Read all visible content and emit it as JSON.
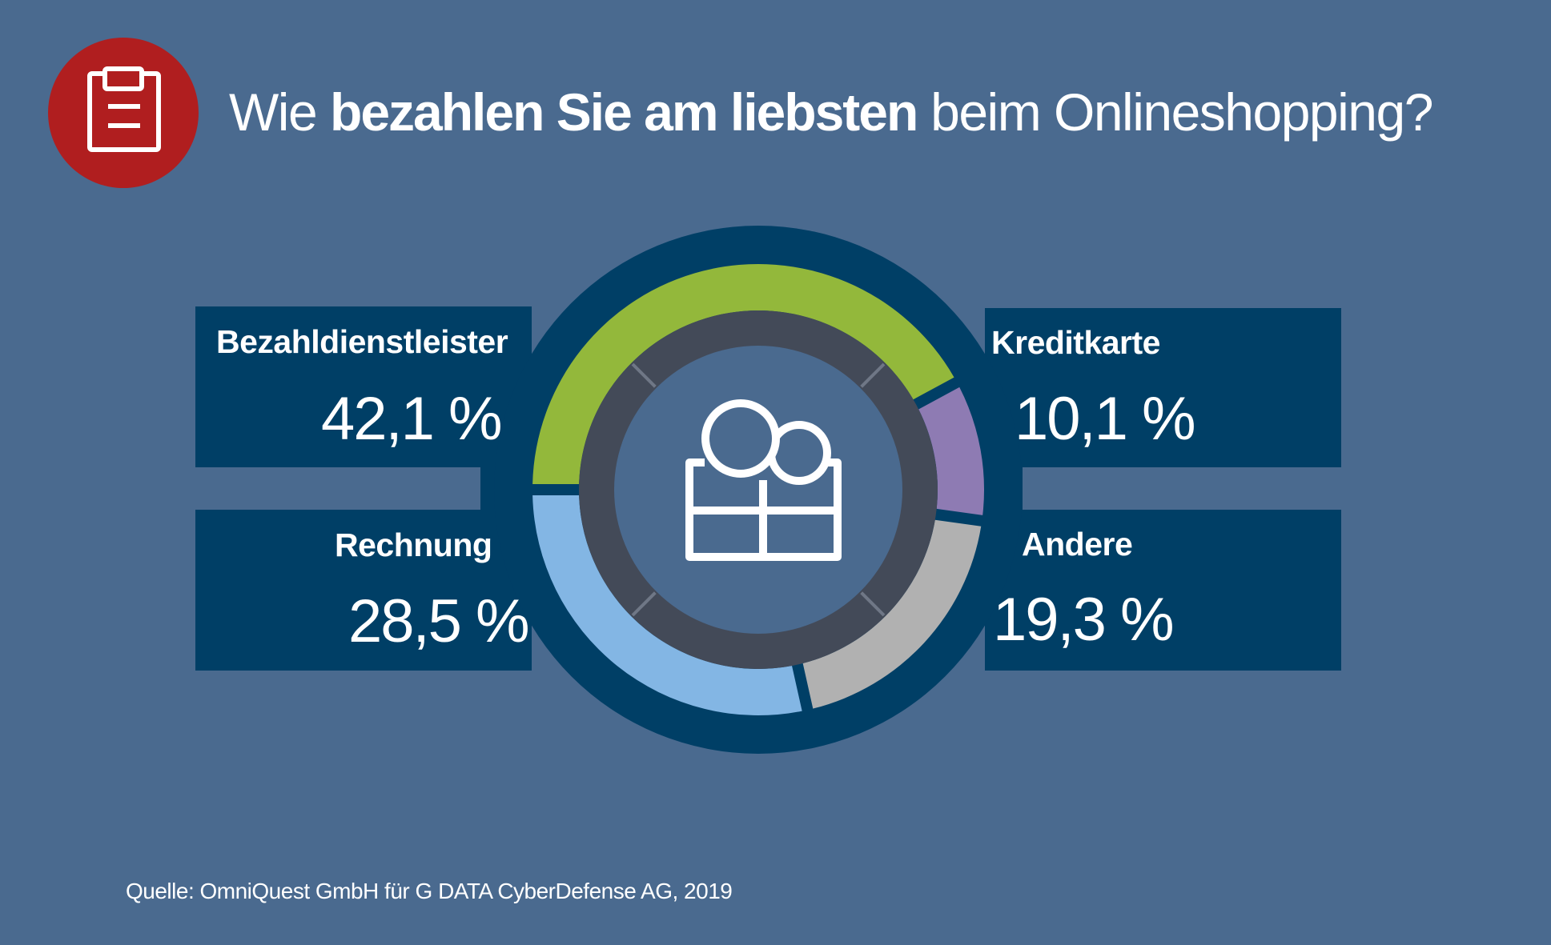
{
  "header": {
    "icon": "clipboard-icon",
    "title_prefix": "Wie ",
    "title_bold": "bezahlen Sie am liebsten",
    "title_suffix": " beim Onlineshopping?"
  },
  "colors": {
    "background": "#4a6a8f",
    "panel": "#003f66",
    "badge": "#b01e1f",
    "inner_ring": "#434a58",
    "tick": "#6f7786",
    "text": "#ffffff"
  },
  "center_icon": "coins-and-box-icon",
  "chart_data": {
    "type": "pie",
    "variant": "donut",
    "title": "Wie bezahlen Sie am liebsten beim Onlineshopping?",
    "unit": "%",
    "start": "9 o'clock, clockwise",
    "slices": [
      {
        "name": "Bezahldienstleister",
        "value": 42.1,
        "label": "42,1 %",
        "color": "#93b83b",
        "position": "top-left"
      },
      {
        "name": "Kreditkarte",
        "value": 10.1,
        "label": "10,1 %",
        "color": "#8e7bb3",
        "position": "top-right"
      },
      {
        "name": "Andere",
        "value": 19.3,
        "label": "19,3 %",
        "color": "#b1b1b1",
        "position": "bottom-right"
      },
      {
        "name": "Rechnung",
        "value": 28.5,
        "label": "28,5 %",
        "color": "#83b6e4",
        "position": "bottom-left"
      }
    ]
  },
  "footer": {
    "source": "Quelle: OmniQuest GmbH für G DATA CyberDefense AG, 2019"
  }
}
